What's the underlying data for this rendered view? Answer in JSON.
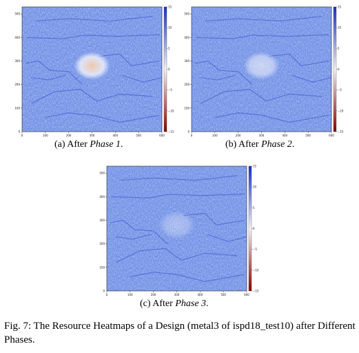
{
  "figure": {
    "caption": "Fig. 7: The Resource Heatmaps of a Design (metal3 of ispd18_test10) after Different Phases.",
    "panels": [
      {
        "label": "(a) After ",
        "phase": "Phase 1",
        "suffix": ".",
        "hot_intensity": 0.85
      },
      {
        "label": "(b) After ",
        "phase": "Phase 2",
        "suffix": ".",
        "hot_intensity": 0.55
      },
      {
        "label": "(c) After ",
        "phase": "Phase 3",
        "suffix": ".",
        "hot_intensity": 0.3
      }
    ]
  },
  "chart_data": [
    {
      "type": "heatmap",
      "x_ticks": [
        0,
        100,
        200,
        300,
        400,
        500,
        600
      ],
      "y_ticks": [
        100,
        200,
        300,
        400,
        500
      ],
      "xlim": [
        0,
        600
      ],
      "ylim": [
        0,
        530
      ],
      "colorbar_ticks": [
        15,
        10,
        5,
        0,
        -5,
        -10,
        -15
      ],
      "colorbar_range": [
        -15,
        15
      ],
      "colormap": {
        "high": "#1a2fc8",
        "mid": "#f4f4f7",
        "low": "#8b0000"
      }
    },
    {
      "type": "heatmap",
      "x_ticks": [
        0,
        100,
        200,
        300,
        400,
        500,
        600
      ],
      "y_ticks": [
        100,
        200,
        300,
        400,
        500
      ],
      "xlim": [
        0,
        600
      ],
      "ylim": [
        0,
        530
      ],
      "colorbar_ticks": [
        15,
        10,
        5,
        0,
        -5,
        -10,
        -15
      ],
      "colorbar_range": [
        -15,
        15
      ],
      "colormap": {
        "high": "#1a2fc8",
        "mid": "#f4f4f7",
        "low": "#8b0000"
      }
    },
    {
      "type": "heatmap",
      "x_ticks": [
        0,
        100,
        200,
        300,
        400,
        500,
        600
      ],
      "y_ticks": [
        100,
        200,
        300,
        400,
        500
      ],
      "xlim": [
        0,
        600
      ],
      "ylim": [
        0,
        530
      ],
      "colorbar_ticks": [
        15,
        10,
        5,
        0,
        -5,
        -10,
        -15
      ],
      "colorbar_range": [
        -15,
        15
      ],
      "colormap": {
        "high": "#1a2fc8",
        "mid": "#f4f4f7",
        "low": "#8b0000"
      }
    }
  ]
}
